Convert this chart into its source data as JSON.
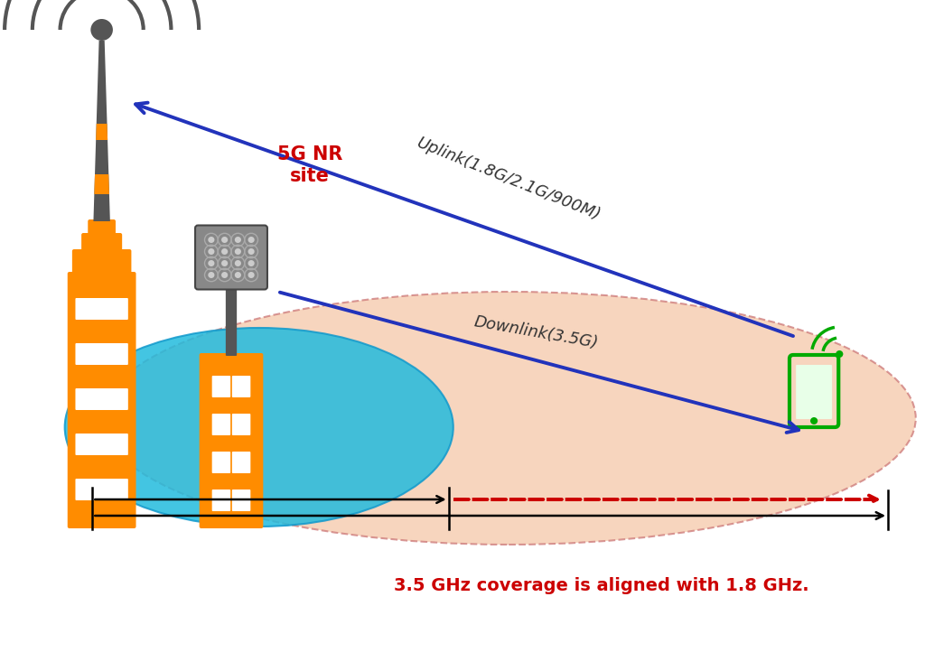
{
  "bg_color": "#ffffff",
  "uplink_label": "Uplink(1.8G/2.1G/900M)",
  "downlink_label": "Downlink(3.5G)",
  "site_label": "5G NR\nsite",
  "bottom_label": "3.5 GHz coverage is aligned with 1.8 GHz.",
  "arrow_color": "#2233BB",
  "label_color": "#333333",
  "red_color": "#cc0000",
  "green_color": "#00aa00",
  "orange_color": "#FF8C00",
  "dark_gray": "#555555",
  "blue_ellipse_color": "#22BBDD",
  "peach_ellipse_color": "#F5C8A8",
  "figsize": [
    10.24,
    7.33
  ],
  "dpi": 100,
  "xlim": [
    0,
    10
  ],
  "ylim": [
    0,
    7.33
  ]
}
